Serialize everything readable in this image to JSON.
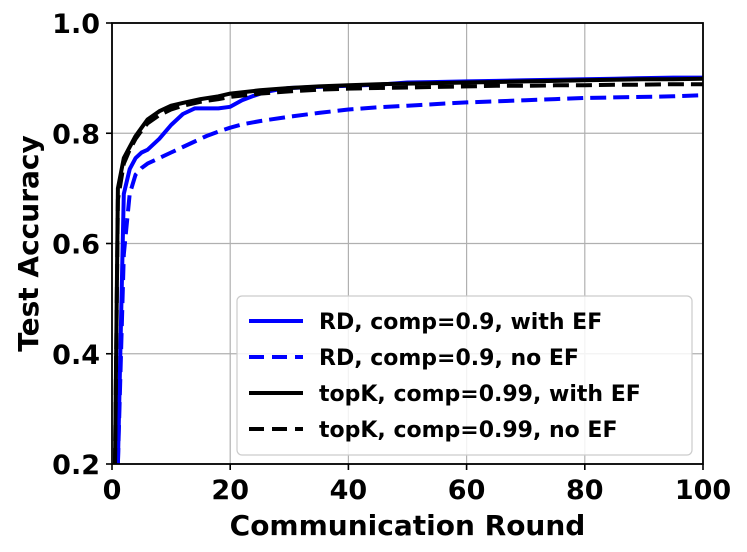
{
  "chart_data": {
    "type": "line",
    "xlabel": "Communication Round",
    "ylabel": "Test Accuracy",
    "xlim": [
      0,
      100
    ],
    "ylim": [
      0.2,
      1.0
    ],
    "xticks": [
      0,
      20,
      40,
      60,
      80,
      100
    ],
    "yticks": [
      0.2,
      0.4,
      0.6,
      0.8,
      1.0
    ],
    "xtick_labels": [
      "0",
      "20",
      "40",
      "60",
      "80",
      "100"
    ],
    "ytick_labels": [
      "0.2",
      "0.4",
      "0.6",
      "0.8",
      "1.0"
    ],
    "grid": true,
    "legend_position": "lower-right",
    "series": [
      {
        "name": "RD, comp=0.9, with EF",
        "color": "#0000ff",
        "dash": "solid",
        "x": [
          1,
          2,
          3,
          4,
          5,
          6,
          8,
          10,
          12,
          14,
          16,
          18,
          20,
          22,
          24,
          26,
          28,
          30,
          35,
          40,
          45,
          50,
          55,
          60,
          65,
          70,
          75,
          80,
          85,
          90,
          95,
          100
        ],
        "y": [
          0.2,
          0.69,
          0.735,
          0.755,
          0.765,
          0.77,
          0.79,
          0.815,
          0.835,
          0.845,
          0.845,
          0.845,
          0.848,
          0.86,
          0.868,
          0.875,
          0.879,
          0.882,
          0.884,
          0.886,
          0.888,
          0.892,
          0.893,
          0.894,
          0.895,
          0.896,
          0.897,
          0.898,
          0.899,
          0.9,
          0.901,
          0.901
        ]
      },
      {
        "name": "RD, comp=0.9, no EF",
        "color": "#0000ff",
        "dash": "dashed",
        "x": [
          1,
          2,
          3,
          4,
          5,
          6,
          8,
          10,
          12,
          14,
          16,
          18,
          20,
          22,
          25,
          30,
          35,
          40,
          45,
          50,
          55,
          60,
          65,
          70,
          75,
          80,
          85,
          90,
          95,
          100
        ],
        "y": [
          0.2,
          0.58,
          0.69,
          0.725,
          0.737,
          0.745,
          0.755,
          0.765,
          0.775,
          0.785,
          0.795,
          0.803,
          0.81,
          0.816,
          0.822,
          0.83,
          0.837,
          0.843,
          0.847,
          0.85,
          0.853,
          0.856,
          0.858,
          0.86,
          0.862,
          0.864,
          0.865,
          0.866,
          0.867,
          0.869
        ]
      },
      {
        "name": "topK, comp=0.99, with EF",
        "color": "#000000",
        "dash": "solid",
        "x": [
          0.5,
          1,
          2,
          3,
          4,
          5,
          6,
          8,
          10,
          12,
          15,
          18,
          20,
          25,
          30,
          35,
          40,
          45,
          50,
          55,
          60,
          65,
          70,
          75,
          80,
          85,
          90,
          95,
          100
        ],
        "y": [
          0.2,
          0.7,
          0.755,
          0.775,
          0.795,
          0.81,
          0.825,
          0.84,
          0.85,
          0.855,
          0.862,
          0.867,
          0.872,
          0.878,
          0.882,
          0.885,
          0.887,
          0.889,
          0.89,
          0.891,
          0.892,
          0.893,
          0.894,
          0.895,
          0.896,
          0.897,
          0.898,
          0.898,
          0.899
        ]
      },
      {
        "name": "topK, comp=0.99, no EF",
        "color": "#000000",
        "dash": "dashed",
        "x": [
          0.5,
          1,
          2,
          3,
          4,
          5,
          6,
          8,
          10,
          12,
          15,
          18,
          20,
          25,
          30,
          35,
          40,
          45,
          50,
          55,
          60,
          65,
          70,
          75,
          80,
          85,
          90,
          95,
          100
        ],
        "y": [
          0.2,
          0.68,
          0.745,
          0.77,
          0.79,
          0.805,
          0.818,
          0.833,
          0.843,
          0.85,
          0.857,
          0.862,
          0.866,
          0.872,
          0.876,
          0.879,
          0.881,
          0.882,
          0.883,
          0.884,
          0.885,
          0.886,
          0.886,
          0.887,
          0.887,
          0.888,
          0.888,
          0.889,
          0.889
        ]
      }
    ]
  }
}
